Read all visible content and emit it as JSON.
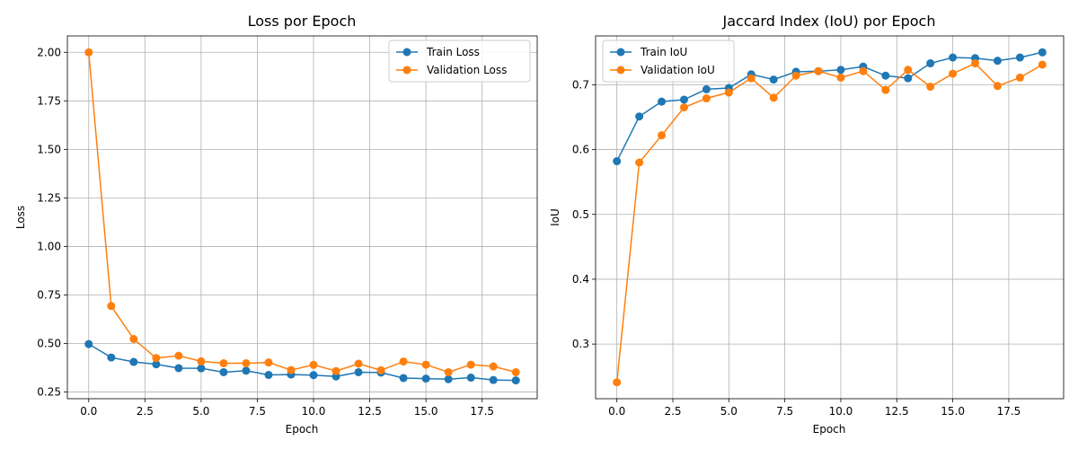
{
  "chart_data": [
    {
      "type": "line",
      "title": "Loss por Epoch",
      "xlabel": "Epoch",
      "ylabel": "Loss",
      "xlim": [
        -0.95,
        19.95
      ],
      "ylim": [
        0.2155,
        2.0845
      ],
      "xticks": [
        0,
        2.5,
        5,
        7.5,
        10,
        12.5,
        15,
        17.5
      ],
      "xtick_labels": [
        "0.0",
        "2.5",
        "5.0",
        "7.5",
        "10.0",
        "12.5",
        "15.0",
        "17.5"
      ],
      "yticks": [
        0.25,
        0.5,
        0.75,
        1.0,
        1.25,
        1.5,
        1.75,
        2.0
      ],
      "ytick_labels": [
        "0.25",
        "0.50",
        "0.75",
        "1.00",
        "1.25",
        "1.50",
        "1.75",
        "2.00"
      ],
      "grid": true,
      "legend_position": "top-right",
      "x": [
        0,
        1,
        2,
        3,
        4,
        5,
        6,
        7,
        8,
        9,
        10,
        11,
        12,
        13,
        14,
        15,
        16,
        17,
        18,
        19
      ],
      "series": [
        {
          "name": "Train Loss",
          "color": "#1f77b4",
          "values": [
            0.497,
            0.428,
            0.405,
            0.393,
            0.373,
            0.372,
            0.352,
            0.36,
            0.338,
            0.34,
            0.337,
            0.33,
            0.352,
            0.35,
            0.322,
            0.319,
            0.316,
            0.324,
            0.312,
            0.31
          ]
        },
        {
          "name": "Validation Loss",
          "color": "#ff7f0e",
          "values": [
            2.0,
            0.693,
            0.523,
            0.425,
            0.437,
            0.408,
            0.398,
            0.398,
            0.402,
            0.363,
            0.39,
            0.358,
            0.396,
            0.362,
            0.407,
            0.391,
            0.352,
            0.391,
            0.382,
            0.352
          ]
        }
      ]
    },
    {
      "type": "line",
      "title": "Jaccard Index (IoU) por Epoch",
      "xlabel": "Epoch",
      "ylabel": "IoU",
      "xlim": [
        -0.95,
        19.95
      ],
      "ylim": [
        0.2157,
        0.7753
      ],
      "xticks": [
        0,
        2.5,
        5,
        7.5,
        10,
        12.5,
        15,
        17.5
      ],
      "xtick_labels": [
        "0.0",
        "2.5",
        "5.0",
        "7.5",
        "10.0",
        "12.5",
        "15.0",
        "17.5"
      ],
      "yticks": [
        0.3,
        0.4,
        0.5,
        0.6,
        0.7
      ],
      "ytick_labels": [
        "0.3",
        "0.4",
        "0.5",
        "0.6",
        "0.7"
      ],
      "grid": true,
      "legend_position": "top-left",
      "x": [
        0,
        1,
        2,
        3,
        4,
        5,
        6,
        7,
        8,
        9,
        10,
        11,
        12,
        13,
        14,
        15,
        16,
        17,
        18,
        19
      ],
      "series": [
        {
          "name": "Train IoU",
          "color": "#1f77b4",
          "values": [
            0.582,
            0.651,
            0.674,
            0.677,
            0.693,
            0.695,
            0.716,
            0.708,
            0.72,
            0.721,
            0.723,
            0.728,
            0.714,
            0.71,
            0.733,
            0.742,
            0.741,
            0.737,
            0.742,
            0.75
          ]
        },
        {
          "name": "Validation IoU",
          "color": "#ff7f0e",
          "values": [
            0.241,
            0.58,
            0.622,
            0.665,
            0.679,
            0.688,
            0.71,
            0.68,
            0.714,
            0.721,
            0.711,
            0.721,
            0.692,
            0.723,
            0.697,
            0.717,
            0.733,
            0.698,
            0.711,
            0.731
          ]
        }
      ]
    }
  ]
}
